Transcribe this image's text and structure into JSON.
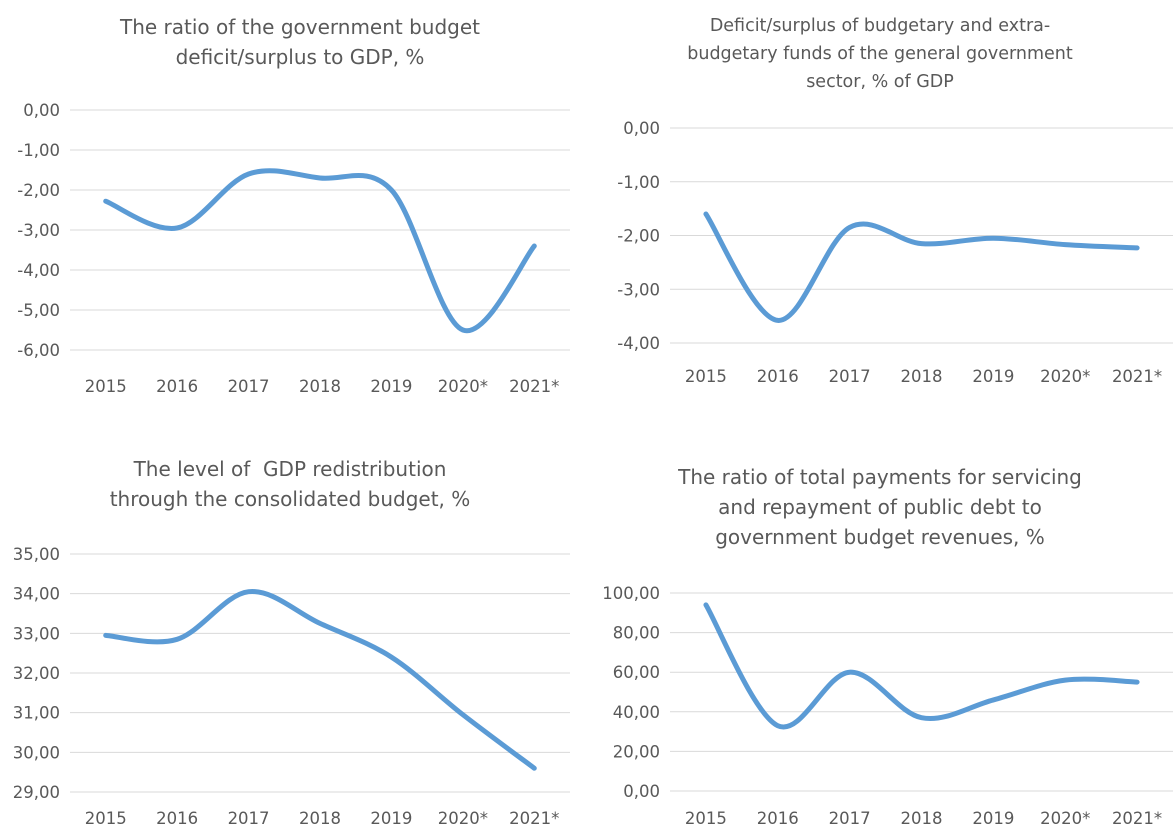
{
  "chart_data": [
    {
      "type": "line",
      "title": "The ratio of the government budget deficit/surplus to GDP, %",
      "title_lines": [
        "The ratio of the government budget",
        "deficit/surplus to GDP, %"
      ],
      "categories": [
        "2015",
        "2016",
        "2017",
        "2018",
        "2019",
        "2020*",
        "2021*"
      ],
      "series": [
        {
          "values": [
            -2.28,
            -2.95,
            -1.6,
            -1.7,
            -2.0,
            -5.5,
            -3.4
          ]
        }
      ],
      "yticks": [
        "0,00",
        "-1,00",
        "-2,00",
        "-3,00",
        "-4,00",
        "-5,00",
        "-6,00"
      ],
      "ylim": [
        -6,
        0
      ],
      "grid": true,
      "line_color": "#5B9BD5"
    },
    {
      "type": "line",
      "title": "Deficit/surplus of budgetary and extra-budgetary funds of the general government sector, % of GDP",
      "title_lines": [
        "Deficit/surplus of budgetary and extra-",
        "budgetary funds of the general government",
        "sector, % of GDP"
      ],
      "categories": [
        "2015",
        "2016",
        "2017",
        "2018",
        "2019",
        "2020*",
        "2021*"
      ],
      "series": [
        {
          "values": [
            -1.6,
            -3.58,
            -1.85,
            -2.15,
            -2.05,
            -2.17,
            -2.23
          ]
        }
      ],
      "yticks": [
        "0,00",
        "-1,00",
        "-2,00",
        "-3,00",
        "-4,00"
      ],
      "ylim": [
        -4,
        0
      ],
      "grid": true,
      "line_color": "#5B9BD5"
    },
    {
      "type": "line",
      "title": "The level of GDP redistribution through the consolidated budget, %",
      "title_lines": [
        "The level of  GDP redistribution",
        "through the consolidated budget, %"
      ],
      "categories": [
        "2015",
        "2016",
        "2017",
        "2018",
        "2019",
        "2020*",
        "2021*"
      ],
      "series": [
        {
          "values": [
            32.95,
            32.85,
            34.05,
            33.25,
            32.4,
            30.95,
            29.6
          ]
        }
      ],
      "yticks": [
        "35,00",
        "34,00",
        "33,00",
        "32,00",
        "31,00",
        "30,00",
        "29,00"
      ],
      "ylim": [
        29,
        35
      ],
      "grid": true,
      "line_color": "#5B9BD5"
    },
    {
      "type": "line",
      "title": "The ratio of total payments for servicing and repayment of public debt to government budget revenues, %",
      "title_lines": [
        "The ratio of total payments for servicing",
        "and repayment of public debt to",
        "government budget revenues, %"
      ],
      "categories": [
        "2015",
        "2016",
        "2017",
        "2018",
        "2019",
        "2020*",
        "2021*"
      ],
      "series": [
        {
          "values": [
            94,
            33,
            60,
            37,
            46,
            56,
            55
          ]
        }
      ],
      "yticks": [
        "100,00",
        "80,00",
        "60,00",
        "40,00",
        "20,00",
        "0,00"
      ],
      "ylim": [
        0,
        100
      ],
      "grid": true,
      "line_color": "#5B9BD5"
    }
  ]
}
